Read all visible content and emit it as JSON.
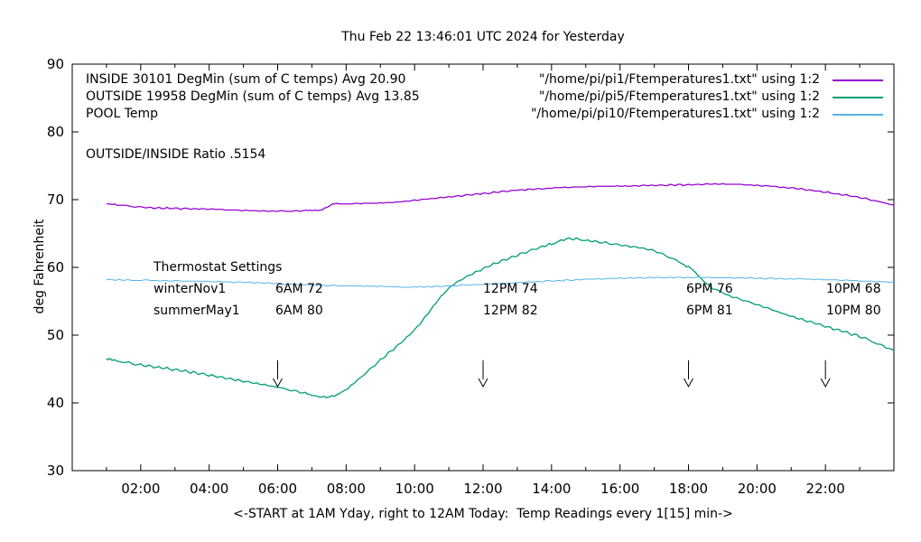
{
  "title": "Thu Feb 22 13:46:01 UTC 2024 for Yesterday",
  "annotations": {
    "ratio": "OUTSIDE/INSIDE Ratio .5154",
    "thermostat": {
      "title": "Thermostat Settings",
      "rows": [
        {
          "name": "winterNov1",
          "settings": [
            "6AM 72",
            "12PM 74",
            "6PM 76",
            "10PM 68"
          ]
        },
        {
          "name": "summerMay1",
          "settings": [
            "6AM 80",
            "12PM 82",
            "6PM 81",
            "10PM 80"
          ]
        }
      ]
    }
  },
  "chart_data": {
    "type": "line",
    "title": "Thu Feb 22 13:46:01 UTC 2024 for Yesterday",
    "xlabel": "<-START at 1AM Yday, right to 12AM Today:  Temp Readings every 1[15] min->",
    "ylabel": "deg Fahrenheit",
    "xlim": [
      0,
      24
    ],
    "ylim": [
      30,
      90
    ],
    "grid": false,
    "legend_position": "top",
    "y_ticks": [
      30,
      40,
      50,
      60,
      70,
      80,
      90
    ],
    "x_major_tick_hours": [
      2,
      4,
      6,
      8,
      10,
      12,
      14,
      16,
      18,
      20,
      22
    ],
    "x_tick_labels": [
      "02:00",
      "04:00",
      "06:00",
      "08:00",
      "10:00",
      "12:00",
      "14:00",
      "16:00",
      "18:00",
      "20:00",
      "22:00"
    ],
    "x_minor_tick_hours": [
      1,
      3,
      5,
      7,
      9,
      11,
      13,
      15,
      17,
      19,
      21,
      23
    ],
    "arrows": {
      "hours": [
        6,
        12,
        18,
        22
      ],
      "top_f": 46.3,
      "tip_f": 42.4
    },
    "series": [
      {
        "name": "INSIDE",
        "label": "INSIDE 30101 DegMin (sum of C temps) Avg 20.90",
        "file": "\"/home/pi/pi1/Ftemperatures1.txt\" using 1:2",
        "color": "#9400d3",
        "width": 1.3,
        "noise": 0.06,
        "points": [
          [
            1,
            69.4
          ],
          [
            2,
            68.9
          ],
          [
            3,
            68.7
          ],
          [
            4,
            68.6
          ],
          [
            5,
            68.4
          ],
          [
            6,
            68.3
          ],
          [
            7,
            68.4
          ],
          [
            7.3,
            68.5
          ],
          [
            7.6,
            69.3
          ],
          [
            8,
            69.4
          ],
          [
            9,
            69.5
          ],
          [
            10,
            69.9
          ],
          [
            11,
            70.4
          ],
          [
            12,
            70.9
          ],
          [
            13,
            71.4
          ],
          [
            14,
            71.7
          ],
          [
            15,
            71.9
          ],
          [
            16,
            72.0
          ],
          [
            17,
            72.1
          ],
          [
            18,
            72.2
          ],
          [
            19,
            72.3
          ],
          [
            20,
            72.1
          ],
          [
            21,
            71.7
          ],
          [
            22,
            71.1
          ],
          [
            23,
            70.3
          ],
          [
            24,
            69.2
          ]
        ]
      },
      {
        "name": "OUTSIDE",
        "label": "OUTSIDE 19958 DegMin (sum of C temps) Avg 13.85",
        "file": "\"/home/pi/pi5/Ftemperatures1.txt\" using 1:2",
        "color": "#009e73",
        "width": 1.3,
        "noise": 0.12,
        "points": [
          [
            1,
            46.5
          ],
          [
            2,
            45.6
          ],
          [
            3,
            44.9
          ],
          [
            4,
            44.1
          ],
          [
            5,
            43.2
          ],
          [
            6,
            42.3
          ],
          [
            7,
            41.2
          ],
          [
            7.5,
            40.9
          ],
          [
            8,
            42.0
          ],
          [
            9,
            46.3
          ],
          [
            10,
            50.8
          ],
          [
            11,
            56.9
          ],
          [
            12,
            59.8
          ],
          [
            13,
            61.8
          ],
          [
            14,
            63.5
          ],
          [
            14.5,
            64.2
          ],
          [
            15,
            64.0
          ],
          [
            16,
            63.3
          ],
          [
            17,
            62.4
          ],
          [
            18,
            60.0
          ],
          [
            18.5,
            57.7
          ],
          [
            19,
            56.2
          ],
          [
            20,
            54.5
          ],
          [
            21,
            52.8
          ],
          [
            22,
            51.3
          ],
          [
            23,
            49.8
          ],
          [
            24,
            47.7
          ]
        ]
      },
      {
        "name": "POOL",
        "label": "POOL Temp",
        "file": "\"/home/pi/pi10/Ftemperatures1.txt\" using 1:2",
        "color": "#56b4e9",
        "width": 1.0,
        "noise": 0.05,
        "points": [
          [
            1,
            58.2
          ],
          [
            3,
            58.0
          ],
          [
            5,
            57.8
          ],
          [
            7,
            57.4
          ],
          [
            9,
            57.2
          ],
          [
            10,
            57.1
          ],
          [
            12,
            57.5
          ],
          [
            14,
            58.0
          ],
          [
            16,
            58.4
          ],
          [
            18,
            58.5
          ],
          [
            20,
            58.4
          ],
          [
            22,
            58.2
          ],
          [
            24,
            57.8
          ]
        ]
      }
    ]
  }
}
